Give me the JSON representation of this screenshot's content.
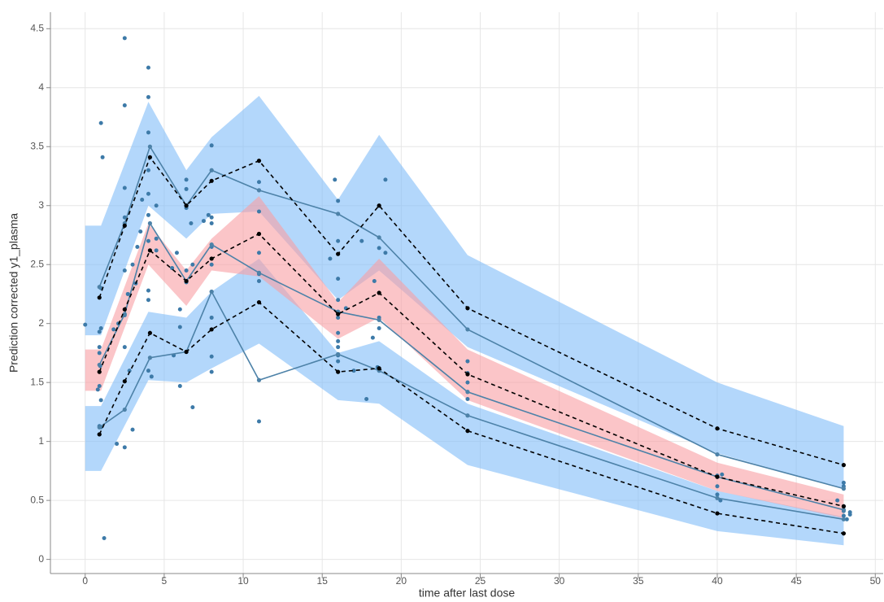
{
  "chart_data": {
    "type": "line",
    "x_label": "time after last dose",
    "y_label": "Prediction corrected y1_plasma",
    "xlim": [
      -2.2,
      50.5
    ],
    "ylim": [
      -0.12,
      4.64
    ],
    "xticks": [
      0,
      5,
      10,
      15,
      20,
      25,
      30,
      35,
      40,
      45,
      50
    ],
    "yticks": [
      0,
      0.5,
      1,
      1.5,
      2,
      2.5,
      3,
      3.5,
      4,
      4.5
    ],
    "grid": true,
    "series": [
      {
        "type": "area",
        "color": "#80bcf8",
        "x": [
          0,
          1,
          4,
          6.4,
          8,
          11,
          16,
          18.6,
          24.2,
          40,
          48
        ],
        "lower": [
          1.9,
          1.9,
          3.0,
          2.72,
          2.93,
          2.95,
          2.2,
          2.45,
          1.8,
          0.9,
          0.6
        ],
        "upper": [
          2.83,
          2.83,
          3.88,
          3.3,
          3.58,
          3.93,
          3.05,
          3.6,
          2.58,
          1.5,
          1.13
        ]
      },
      {
        "type": "area",
        "color": "#80bcf8",
        "x": [
          0,
          1,
          4,
          6.4,
          8,
          11,
          16,
          18.6,
          24.2,
          40,
          48
        ],
        "lower": [
          0.75,
          0.75,
          1.52,
          1.5,
          1.62,
          1.83,
          1.35,
          1.32,
          0.8,
          0.24,
          0.12
        ],
        "upper": [
          1.3,
          1.3,
          2.1,
          2.05,
          2.27,
          2.55,
          1.75,
          1.85,
          1.32,
          0.58,
          0.36
        ]
      },
      {
        "type": "area",
        "color": "#f99ea4",
        "x": [
          0,
          1,
          4,
          6.4,
          8,
          11,
          16,
          18.6,
          24.2,
          40,
          48
        ],
        "lower": [
          1.43,
          1.43,
          2.5,
          2.15,
          2.45,
          2.4,
          1.87,
          2.05,
          1.35,
          0.58,
          0.35
        ],
        "upper": [
          1.78,
          1.78,
          2.85,
          2.45,
          2.72,
          3.08,
          2.18,
          2.55,
          1.78,
          0.82,
          0.55
        ]
      },
      {
        "type": "scatter",
        "color": "#3d7aa8",
        "x": [
          0,
          0.8,
          0.9,
          0.9,
          0.9,
          0.9,
          0.95,
          1.0,
          1.1,
          1.0,
          1.0,
          1.0,
          1.0,
          1.2,
          0.9,
          0.9,
          1.8,
          2.0,
          2.1,
          2.5,
          2.5,
          2.5,
          2.5,
          2.5,
          2.5,
          2.5,
          2.5,
          2.7,
          2.8,
          3.0,
          3.0,
          3.2,
          3.3,
          3.5,
          3.6,
          4.0,
          4.0,
          4.0,
          4.0,
          4.0,
          4.0,
          4.0,
          4.0,
          4.0,
          4.0,
          4.2,
          4.5,
          4.5,
          4.5,
          5.5,
          5.6,
          5.8,
          6.0,
          6.0,
          6.0,
          6.4,
          6.4,
          6.4,
          6.4,
          6.4,
          6.7,
          6.8,
          6.8,
          7.5,
          7.8,
          8.0,
          8.0,
          8.0,
          8.0,
          8.0,
          8.0,
          8.0,
          8.0,
          8.0,
          11,
          11,
          11,
          11,
          11,
          11,
          15.5,
          15.8,
          16,
          16,
          16,
          16,
          16,
          16,
          16,
          16,
          16,
          16,
          16,
          16.5,
          17,
          17.5,
          17.8,
          18.2,
          18.3,
          18.5,
          18.6,
          18.6,
          18.6,
          19,
          19,
          24.2,
          24.2,
          24.2,
          24.2,
          24.2,
          40,
          40,
          40,
          40.2,
          40.3,
          47.6,
          48,
          48,
          48,
          48,
          48,
          48.2,
          48.4,
          48.4
        ],
        "values": [
          1.99,
          1.44,
          1.47,
          1.75,
          1.8,
          1.93,
          1.64,
          3.7,
          3.41,
          2.3,
          1.12,
          1.35,
          1.96,
          0.18,
          1.13,
          1.06,
          1.95,
          0.98,
          2.0,
          4.42,
          3.85,
          3.15,
          2.9,
          2.45,
          2.07,
          1.8,
          0.95,
          2.25,
          1.6,
          1.1,
          2.5,
          2.34,
          2.65,
          2.78,
          3.05,
          4.17,
          3.92,
          3.62,
          3.3,
          3.1,
          2.92,
          2.7,
          2.28,
          2.2,
          1.6,
          1.55,
          3.0,
          2.72,
          2.62,
          2.47,
          1.73,
          2.6,
          2.12,
          1.97,
          1.47,
          3.22,
          3.14,
          2.98,
          2.45,
          2.35,
          2.85,
          1.29,
          2.5,
          2.87,
          2.92,
          3.51,
          2.9,
          2.85,
          2.65,
          2.5,
          2.27,
          1.72,
          1.59,
          2.05,
          3.2,
          2.95,
          2.6,
          2.42,
          2.36,
          1.17,
          2.55,
          3.22,
          3.04,
          2.7,
          2.38,
          2.2,
          2.1,
          2.05,
          1.92,
          1.85,
          1.8,
          1.73,
          1.68,
          2.13,
          1.6,
          2.7,
          1.36,
          1.88,
          2.36,
          1.63,
          2.64,
          2.05,
          1.96,
          3.22,
          2.6,
          1.68,
          1.58,
          1.5,
          1.42,
          1.36,
          0.71,
          0.62,
          0.55,
          0.5,
          0.72,
          0.5,
          0.65,
          0.62,
          0.45,
          0.41,
          0.37,
          0.34,
          0.38,
          0.4
        ]
      },
      {
        "type": "line",
        "color": "#4d82a8",
        "dashed": false,
        "x": [
          0.9,
          2.5,
          4.1,
          6.4,
          8,
          11,
          16,
          18.6,
          24.2,
          40,
          48
        ],
        "values": [
          2.31,
          2.85,
          3.5,
          3.0,
          3.3,
          3.13,
          2.93,
          2.73,
          1.95,
          0.89,
          0.6
        ]
      },
      {
        "type": "line",
        "color": "#4d82a8",
        "dashed": false,
        "x": [
          0.9,
          2.5,
          4.1,
          6.4,
          8,
          11,
          16,
          18.6,
          24.2,
          40,
          48
        ],
        "values": [
          1.65,
          2.08,
          2.85,
          2.36,
          2.67,
          2.43,
          2.1,
          2.03,
          1.42,
          0.7,
          0.42
        ]
      },
      {
        "type": "line",
        "color": "#4d82a8",
        "dashed": false,
        "x": [
          0.9,
          2.5,
          4.1,
          6.4,
          8,
          11,
          16,
          18.6,
          24.2,
          40,
          48
        ],
        "values": [
          1.12,
          1.27,
          1.71,
          1.76,
          2.27,
          1.52,
          1.74,
          1.6,
          1.22,
          0.52,
          0.34
        ]
      },
      {
        "type": "line",
        "color": "#000000",
        "dashed": true,
        "x": [
          0.9,
          2.5,
          4.1,
          6.4,
          8,
          11,
          16,
          18.6,
          24.2,
          40,
          48
        ],
        "values": [
          2.22,
          2.83,
          3.41,
          3.0,
          3.21,
          3.38,
          2.59,
          3.0,
          2.13,
          1.11,
          0.8
        ]
      },
      {
        "type": "line",
        "color": "#000000",
        "dashed": true,
        "x": [
          0.9,
          2.5,
          4.1,
          6.4,
          8,
          11,
          16,
          18.6,
          24.2,
          40,
          48
        ],
        "values": [
          1.59,
          2.12,
          2.62,
          2.36,
          2.55,
          2.76,
          2.08,
          2.26,
          1.57,
          0.7,
          0.45
        ]
      },
      {
        "type": "line",
        "color": "#000000",
        "dashed": true,
        "x": [
          0.9,
          2.5,
          4.1,
          6.4,
          8,
          11,
          16,
          18.6,
          24.2,
          40,
          48
        ],
        "values": [
          1.06,
          1.51,
          1.92,
          1.76,
          1.95,
          2.18,
          1.59,
          1.62,
          1.09,
          0.39,
          0.22
        ]
      }
    ]
  }
}
